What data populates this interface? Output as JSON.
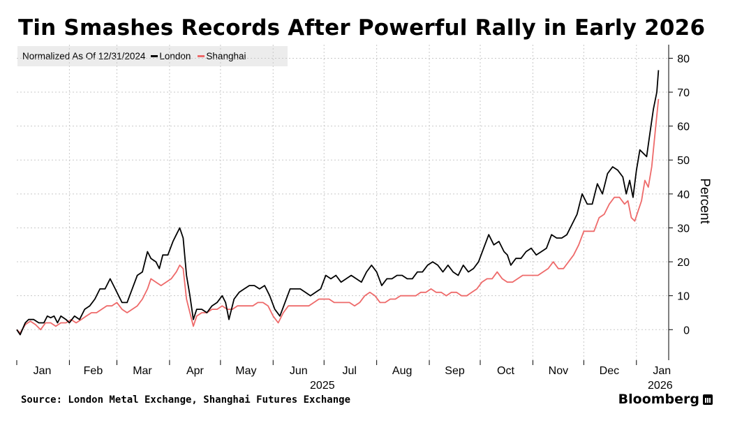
{
  "chart_data": {
    "type": "line",
    "title": "Tin Smashes Records After Powerful Rally in Early 2026",
    "subtitle": "Normalized As Of 12/31/2024",
    "ylabel": "Percent",
    "ylim": [
      -9,
      84
    ],
    "yticks": [
      0,
      10,
      20,
      30,
      40,
      50,
      60,
      70,
      80
    ],
    "xlim": [
      0,
      384
    ],
    "month_labels": [
      "Jan",
      "Feb",
      "Mar",
      "Apr",
      "May",
      "Jun",
      "Jul",
      "Aug",
      "Sep",
      "Oct",
      "Nov",
      "Dec",
      "Jan"
    ],
    "month_positions": [
      15,
      45,
      74,
      105,
      135,
      166,
      196,
      227,
      258,
      288,
      319,
      349,
      380
    ],
    "month_boundaries": [
      0,
      31,
      59,
      90,
      120,
      151,
      181,
      212,
      243,
      273,
      304,
      334,
      365
    ],
    "year_labels": [
      {
        "text": "2025",
        "x": 180
      },
      {
        "text": "2026",
        "x": 379
      }
    ],
    "series": [
      {
        "name": "London",
        "color": "#000000",
        "points": [
          [
            0,
            0
          ],
          [
            2,
            -1.5
          ],
          [
            5,
            2
          ],
          [
            7,
            3
          ],
          [
            10,
            3
          ],
          [
            13,
            2
          ],
          [
            16,
            2
          ],
          [
            18,
            4
          ],
          [
            20,
            3.5
          ],
          [
            22,
            4
          ],
          [
            24,
            2
          ],
          [
            26,
            4
          ],
          [
            29,
            3
          ],
          [
            31,
            2
          ],
          [
            34,
            4
          ],
          [
            37,
            3
          ],
          [
            40,
            6
          ],
          [
            43,
            7
          ],
          [
            46,
            9
          ],
          [
            49,
            12
          ],
          [
            52,
            12
          ],
          [
            55,
            15
          ],
          [
            58,
            12
          ],
          [
            60,
            10
          ],
          [
            62,
            8
          ],
          [
            65,
            8
          ],
          [
            68,
            12
          ],
          [
            71,
            16
          ],
          [
            74,
            17
          ],
          [
            77,
            23
          ],
          [
            79,
            21
          ],
          [
            82,
            20
          ],
          [
            84,
            18
          ],
          [
            86,
            22
          ],
          [
            89,
            22
          ],
          [
            92,
            26
          ],
          [
            94,
            28
          ],
          [
            96,
            30
          ],
          [
            98,
            27
          ],
          [
            100,
            16
          ],
          [
            102,
            10
          ],
          [
            104,
            3
          ],
          [
            106,
            6
          ],
          [
            109,
            6
          ],
          [
            112,
            5
          ],
          [
            115,
            7
          ],
          [
            118,
            8
          ],
          [
            121,
            10
          ],
          [
            123,
            8
          ],
          [
            125,
            3
          ],
          [
            128,
            9
          ],
          [
            131,
            11
          ],
          [
            134,
            12
          ],
          [
            137,
            13
          ],
          [
            140,
            13
          ],
          [
            143,
            12
          ],
          [
            146,
            13
          ],
          [
            149,
            10
          ],
          [
            152,
            6
          ],
          [
            155,
            4
          ],
          [
            158,
            8
          ],
          [
            161,
            12
          ],
          [
            164,
            12
          ],
          [
            167,
            12
          ],
          [
            170,
            11
          ],
          [
            173,
            10
          ],
          [
            176,
            11
          ],
          [
            179,
            12
          ],
          [
            182,
            16
          ],
          [
            185,
            15
          ],
          [
            188,
            16
          ],
          [
            191,
            14
          ],
          [
            194,
            15
          ],
          [
            197,
            16
          ],
          [
            200,
            15
          ],
          [
            203,
            14
          ],
          [
            206,
            17
          ],
          [
            209,
            19
          ],
          [
            212,
            17
          ],
          [
            215,
            13
          ],
          [
            218,
            15
          ],
          [
            221,
            15
          ],
          [
            224,
            16
          ],
          [
            227,
            16
          ],
          [
            230,
            15
          ],
          [
            233,
            15
          ],
          [
            236,
            17
          ],
          [
            239,
            17
          ],
          [
            242,
            19
          ],
          [
            245,
            20
          ],
          [
            248,
            19
          ],
          [
            251,
            17
          ],
          [
            254,
            19
          ],
          [
            257,
            17
          ],
          [
            260,
            16
          ],
          [
            263,
            19
          ],
          [
            266,
            17
          ],
          [
            269,
            18
          ],
          [
            272,
            20
          ],
          [
            275,
            24
          ],
          [
            278,
            28
          ],
          [
            281,
            25
          ],
          [
            284,
            26
          ],
          [
            287,
            23
          ],
          [
            289,
            22
          ],
          [
            291,
            19
          ],
          [
            294,
            21
          ],
          [
            297,
            21
          ],
          [
            300,
            23
          ],
          [
            303,
            24
          ],
          [
            306,
            22
          ],
          [
            309,
            23
          ],
          [
            312,
            24
          ],
          [
            315,
            28
          ],
          [
            318,
            27
          ],
          [
            321,
            27
          ],
          [
            324,
            28
          ],
          [
            327,
            31
          ],
          [
            330,
            34
          ],
          [
            333,
            40
          ],
          [
            336,
            37
          ],
          [
            339,
            37
          ],
          [
            342,
            43
          ],
          [
            345,
            40
          ],
          [
            348,
            46
          ],
          [
            351,
            48
          ],
          [
            354,
            47
          ],
          [
            357,
            45
          ],
          [
            359,
            40
          ],
          [
            361,
            44
          ],
          [
            363,
            39
          ],
          [
            365,
            47
          ],
          [
            367,
            53
          ],
          [
            369,
            52
          ],
          [
            371,
            51
          ],
          [
            373,
            58
          ],
          [
            375,
            65
          ],
          [
            377,
            70
          ],
          [
            378,
            76.5
          ]
        ]
      },
      {
        "name": "Shanghai",
        "color": "#ee6a6a",
        "points": [
          [
            0,
            0
          ],
          [
            2,
            -1
          ],
          [
            5,
            1.5
          ],
          [
            8,
            2.5
          ],
          [
            11,
            1.5
          ],
          [
            14,
            0
          ],
          [
            17,
            2
          ],
          [
            20,
            2
          ],
          [
            23,
            1
          ],
          [
            26,
            2
          ],
          [
            29,
            2
          ],
          [
            32,
            3
          ],
          [
            35,
            2
          ],
          [
            38,
            3
          ],
          [
            41,
            4
          ],
          [
            44,
            5
          ],
          [
            47,
            5
          ],
          [
            50,
            6
          ],
          [
            53,
            7
          ],
          [
            56,
            7
          ],
          [
            59,
            8
          ],
          [
            62,
            6
          ],
          [
            65,
            5
          ],
          [
            68,
            6
          ],
          [
            71,
            7
          ],
          [
            74,
            9
          ],
          [
            77,
            12
          ],
          [
            79,
            15
          ],
          [
            82,
            14
          ],
          [
            85,
            13
          ],
          [
            88,
            14
          ],
          [
            91,
            15
          ],
          [
            94,
            17
          ],
          [
            96,
            19
          ],
          [
            98,
            18
          ],
          [
            100,
            9
          ],
          [
            102,
            5
          ],
          [
            104,
            1
          ],
          [
            106,
            4
          ],
          [
            109,
            5
          ],
          [
            112,
            5
          ],
          [
            115,
            6
          ],
          [
            118,
            6
          ],
          [
            121,
            7
          ],
          [
            124,
            6
          ],
          [
            127,
            6
          ],
          [
            130,
            7
          ],
          [
            133,
            7
          ],
          [
            136,
            7
          ],
          [
            139,
            7
          ],
          [
            142,
            8
          ],
          [
            145,
            8
          ],
          [
            148,
            7
          ],
          [
            151,
            4
          ],
          [
            154,
            2
          ],
          [
            157,
            5
          ],
          [
            160,
            7
          ],
          [
            163,
            7
          ],
          [
            166,
            7
          ],
          [
            169,
            7
          ],
          [
            172,
            7
          ],
          [
            175,
            8
          ],
          [
            178,
            9
          ],
          [
            181,
            9
          ],
          [
            184,
            9
          ],
          [
            187,
            8
          ],
          [
            190,
            8
          ],
          [
            193,
            8
          ],
          [
            196,
            8
          ],
          [
            199,
            7
          ],
          [
            202,
            8
          ],
          [
            205,
            10
          ],
          [
            208,
            11
          ],
          [
            211,
            10
          ],
          [
            214,
            8
          ],
          [
            217,
            8
          ],
          [
            220,
            9
          ],
          [
            223,
            9
          ],
          [
            226,
            10
          ],
          [
            229,
            10
          ],
          [
            232,
            10
          ],
          [
            235,
            10
          ],
          [
            238,
            11
          ],
          [
            241,
            11
          ],
          [
            244,
            12
          ],
          [
            247,
            11
          ],
          [
            250,
            11
          ],
          [
            253,
            10
          ],
          [
            256,
            11
          ],
          [
            259,
            11
          ],
          [
            262,
            10
          ],
          [
            265,
            10
          ],
          [
            268,
            11
          ],
          [
            271,
            12
          ],
          [
            274,
            14
          ],
          [
            277,
            15
          ],
          [
            280,
            15
          ],
          [
            283,
            17
          ],
          [
            286,
            15
          ],
          [
            289,
            14
          ],
          [
            292,
            14
          ],
          [
            295,
            15
          ],
          [
            298,
            16
          ],
          [
            301,
            16
          ],
          [
            304,
            16
          ],
          [
            307,
            16
          ],
          [
            310,
            17
          ],
          [
            313,
            18
          ],
          [
            316,
            20
          ],
          [
            319,
            18
          ],
          [
            322,
            18
          ],
          [
            325,
            20
          ],
          [
            328,
            22
          ],
          [
            331,
            25
          ],
          [
            334,
            29
          ],
          [
            337,
            29
          ],
          [
            340,
            29
          ],
          [
            343,
            33
          ],
          [
            346,
            34
          ],
          [
            349,
            37
          ],
          [
            352,
            39
          ],
          [
            355,
            39
          ],
          [
            358,
            37
          ],
          [
            360,
            38
          ],
          [
            362,
            33
          ],
          [
            364,
            32
          ],
          [
            366,
            35
          ],
          [
            368,
            38
          ],
          [
            370,
            44
          ],
          [
            372,
            42
          ],
          [
            374,
            48
          ],
          [
            376,
            58
          ],
          [
            378,
            68
          ]
        ]
      }
    ],
    "source": "Source: London Metal Exchange, Shanghai Futures Exchange",
    "brand": "Bloomberg"
  }
}
